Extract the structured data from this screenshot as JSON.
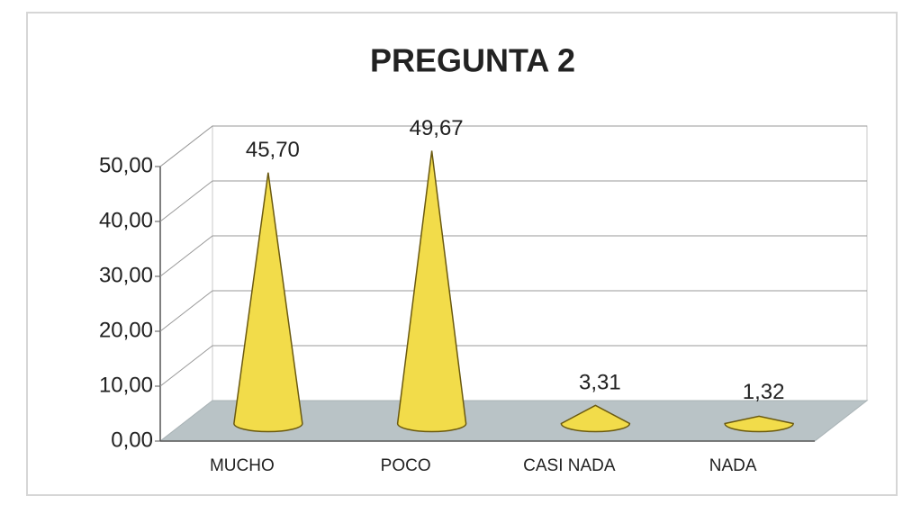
{
  "chart_data": {
    "type": "cone",
    "title": "PREGUNTA 2",
    "categories": [
      "MUCHO",
      "POCO",
      "CASI NADA",
      "NADA"
    ],
    "values": [
      45.7,
      49.67,
      3.31,
      1.32
    ],
    "value_labels": [
      "45,70",
      "49,67",
      "3,31",
      "1,32"
    ],
    "color": "#f2dc4a",
    "ylim": [
      0,
      50
    ],
    "yticks": [
      {
        "value": 0,
        "label": "0,00"
      },
      {
        "value": 10,
        "label": "10,00"
      },
      {
        "value": 20,
        "label": "20,00"
      },
      {
        "value": 30,
        "label": "30,00"
      },
      {
        "value": 40,
        "label": "40,00"
      },
      {
        "value": 50,
        "label": "50,00"
      }
    ],
    "grid": true
  }
}
